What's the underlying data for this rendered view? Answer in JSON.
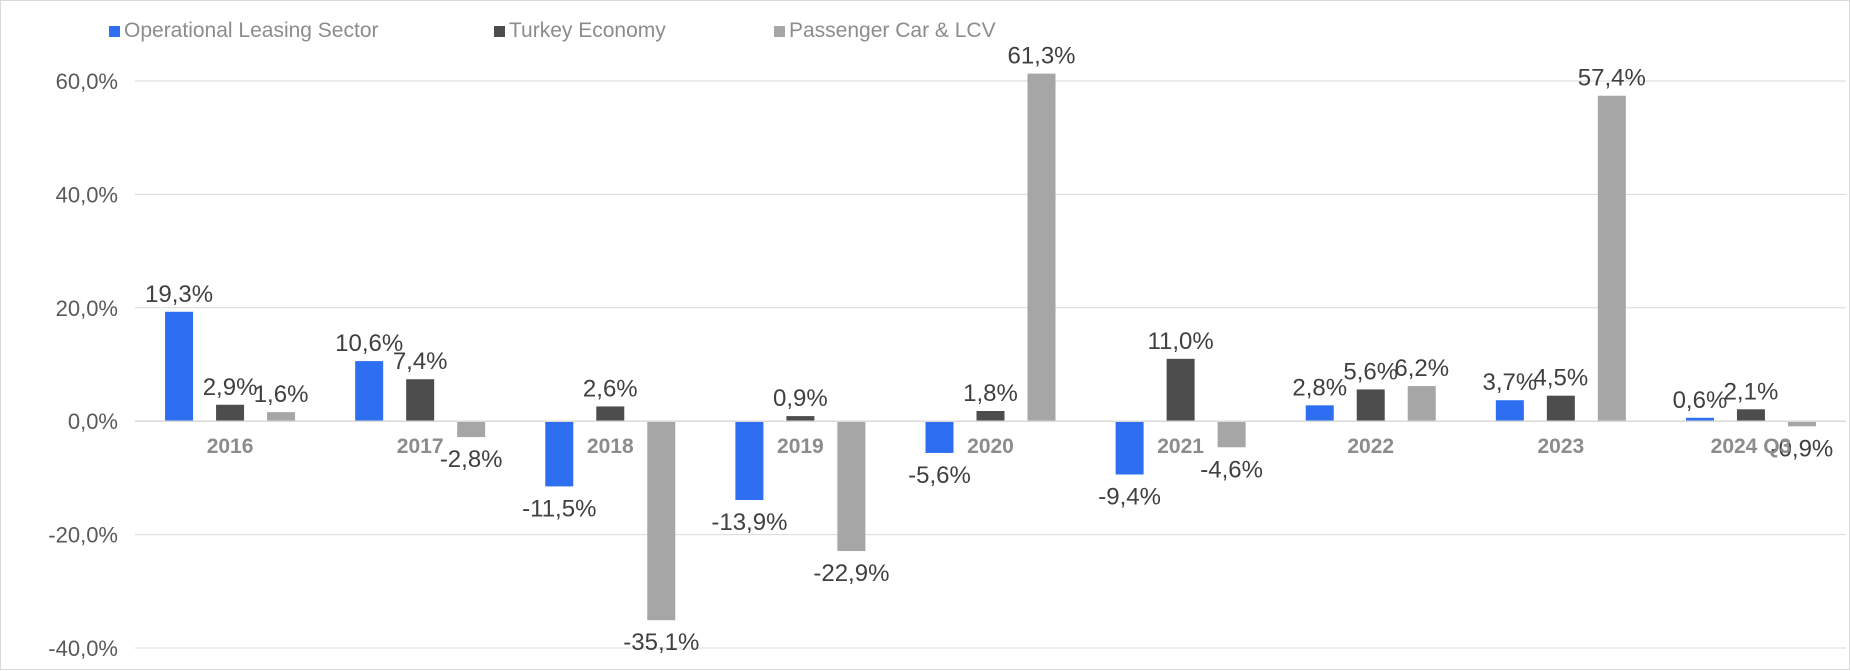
{
  "chart_data": {
    "type": "bar",
    "categories": [
      "2016",
      "2017",
      "2018",
      "2019",
      "2020",
      "2021",
      "2022",
      "2023",
      "2024 Q3"
    ],
    "series": [
      {
        "name": "Operational Leasing Sector",
        "color": "#2e6ff2",
        "values": [
          19.3,
          10.6,
          -11.5,
          -13.9,
          -5.6,
          -9.4,
          2.8,
          3.7,
          0.6
        ],
        "labels": [
          "19,3%",
          "10,6%",
          "-11,5%",
          "-13,9%",
          "-5,6%",
          "-9,4%",
          "2,8%",
          "3,7%",
          "0,6%"
        ]
      },
      {
        "name": "Turkey Economy",
        "color": "#4d4d4d",
        "values": [
          2.9,
          7.4,
          2.6,
          0.9,
          1.8,
          11.0,
          5.6,
          4.5,
          2.1
        ],
        "labels": [
          "2,9%",
          "7,4%",
          "2,6%",
          "0,9%",
          "1,8%",
          "11,0%",
          "5,6%",
          "4,5%",
          "2,1%"
        ]
      },
      {
        "name": "Passenger Car & LCV",
        "color": "#a6a6a6",
        "values": [
          1.6,
          -2.8,
          -35.1,
          -22.9,
          61.3,
          -4.6,
          6.2,
          57.4,
          -0.9
        ],
        "labels": [
          "1,6%",
          "-2,8%",
          "-35,1%",
          "-22,9%",
          "61,3%",
          "-4,6%",
          "6,2%",
          "57,4%",
          "-0,9%"
        ]
      }
    ],
    "yticks": [
      "60,0%",
      "40,0%",
      "20,0%",
      "0,0%",
      "-20,0%",
      "-40,0%"
    ],
    "ytick_values": [
      60,
      40,
      20,
      0,
      -20,
      -40
    ],
    "ylim": [
      -40,
      60
    ],
    "grid": true,
    "legend_position": "top-left"
  }
}
